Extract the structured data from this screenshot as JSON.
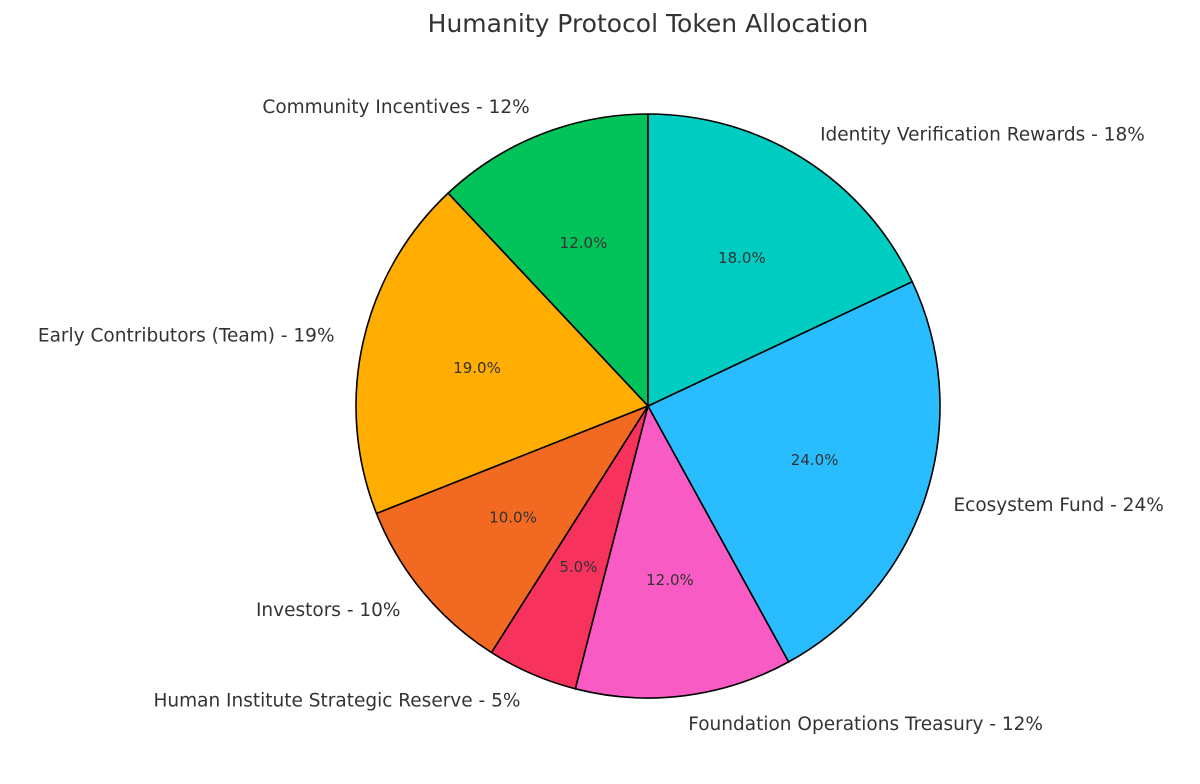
{
  "chart_data": {
    "type": "pie",
    "title": "Humanity Protocol Token Allocation",
    "start_angle_deg": 90,
    "direction": "counterclockwise",
    "slices": [
      {
        "name": "Community Incentives",
        "value": 12,
        "label": "Community Incentives - 12%",
        "pct_label": "12.0%",
        "color": "#02c35a"
      },
      {
        "name": "Early Contributors (Team)",
        "value": 19,
        "label": "Early Contributors (Team) - 19%",
        "pct_label": "19.0%",
        "color": "#ffad00"
      },
      {
        "name": "Investors",
        "value": 10,
        "label": "Investors - 10%",
        "pct_label": "10.0%",
        "color": "#f26a22"
      },
      {
        "name": "Human Institute Strategic Reserve",
        "value": 5,
        "label": "Human Institute Strategic Reserve - 5%",
        "pct_label": "5.0%",
        "color": "#f7325c"
      },
      {
        "name": "Foundation Operations Treasury",
        "value": 12,
        "label": "Foundation Operations Treasury - 12%",
        "pct_label": "12.0%",
        "color": "#f95bc4"
      },
      {
        "name": "Ecosystem Fund",
        "value": 24,
        "label": "Ecosystem Fund - 24%",
        "pct_label": "24.0%",
        "color": "#29bcfe"
      },
      {
        "name": "Identity Verification Rewards",
        "value": 18,
        "label": "Identity Verification Rewards - 18%",
        "pct_label": "18.0%",
        "color": "#00cdc1"
      }
    ]
  }
}
